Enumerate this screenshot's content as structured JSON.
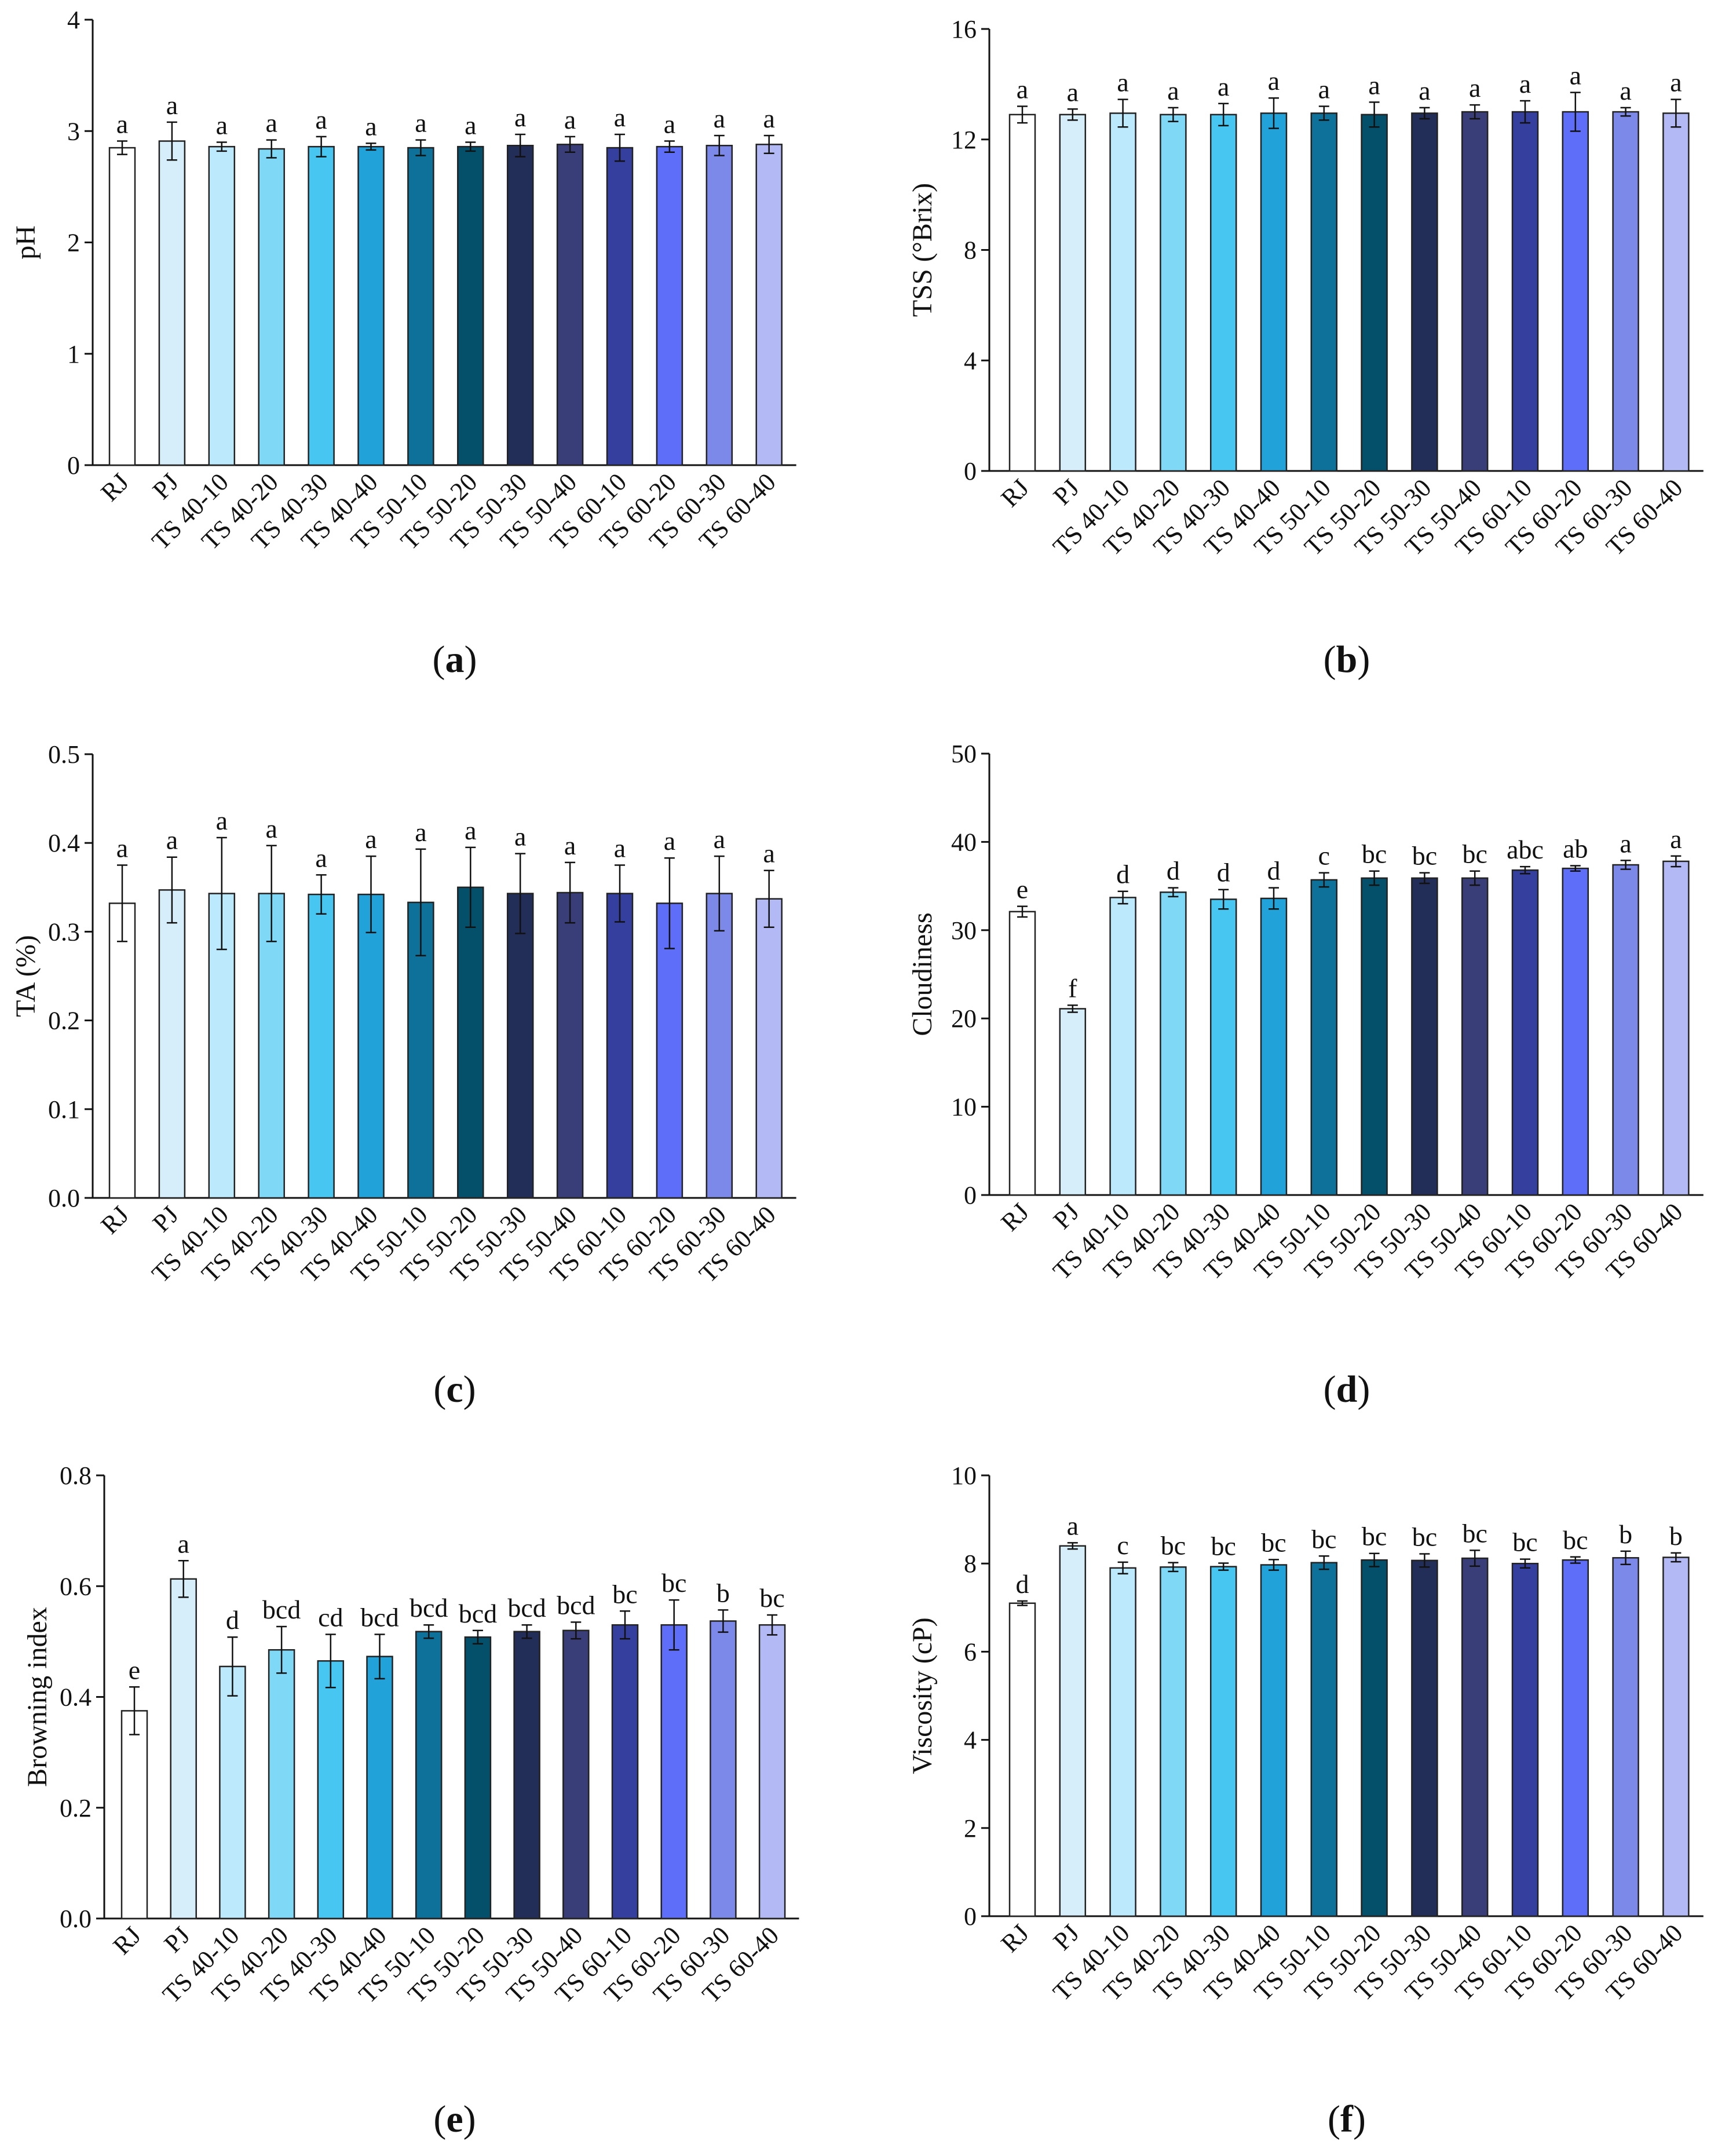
{
  "categories": [
    "RJ",
    "PJ",
    "TS 40-10",
    "TS 40-20",
    "TS 40-30",
    "TS 40-40",
    "TS 50-10",
    "TS 50-20",
    "TS 50-30",
    "TS 50-40",
    "TS 60-10",
    "TS 60-20",
    "TS 60-30",
    "TS 60-40"
  ],
  "bar_colors": [
    "#ffffff",
    "#d6eefa",
    "#bce9fb",
    "#7fd8f6",
    "#48c6f2",
    "#21a2d9",
    "#0e7199",
    "#04506b",
    "#232e58",
    "#393d78",
    "#353f9e",
    "#5f6ef9",
    "#7d89e8",
    "#b2b9f4"
  ],
  "chart_data": [
    {
      "panel": "a",
      "panel_label": "a",
      "type": "bar",
      "ylabel": "pH",
      "ylim": [
        0,
        4
      ],
      "yticks": [
        "0",
        "1",
        "2",
        "3",
        "4"
      ],
      "values": [
        2.85,
        2.91,
        2.86,
        2.84,
        2.86,
        2.86,
        2.85,
        2.86,
        2.87,
        2.88,
        2.85,
        2.86,
        2.87,
        2.88
      ],
      "errors": [
        0.06,
        0.17,
        0.04,
        0.08,
        0.09,
        0.03,
        0.07,
        0.04,
        0.1,
        0.07,
        0.12,
        0.05,
        0.09,
        0.08
      ],
      "letters": [
        "a",
        "a",
        "a",
        "a",
        "a",
        "a",
        "a",
        "a",
        "a",
        "a",
        "a",
        "a",
        "a",
        "a"
      ]
    },
    {
      "panel": "b",
      "panel_label": "b",
      "type": "bar",
      "ylabel": "TSS (°Brix)",
      "ylim": [
        0,
        16
      ],
      "yticks": [
        "0",
        "4",
        "8",
        "12",
        "16"
      ],
      "values": [
        12.9,
        12.9,
        12.95,
        12.9,
        12.9,
        12.95,
        12.95,
        12.9,
        12.95,
        13.0,
        13.0,
        13.0,
        13.0,
        12.95
      ],
      "errors": [
        0.3,
        0.2,
        0.5,
        0.25,
        0.4,
        0.55,
        0.25,
        0.45,
        0.2,
        0.25,
        0.4,
        0.7,
        0.15,
        0.5
      ],
      "letters": [
        "a",
        "a",
        "a",
        "a",
        "a",
        "a",
        "a",
        "a",
        "a",
        "a",
        "a",
        "a",
        "a",
        "a"
      ]
    },
    {
      "panel": "c",
      "panel_label": "c",
      "type": "bar",
      "ylabel": "TA (%)",
      "ylim": [
        0,
        0.5
      ],
      "yticks": [
        "0.0",
        "0.1",
        "0.2",
        "0.3",
        "0.4",
        "0.5"
      ],
      "values": [
        0.332,
        0.347,
        0.343,
        0.343,
        0.342,
        0.342,
        0.333,
        0.35,
        0.343,
        0.344,
        0.343,
        0.332,
        0.343,
        0.337
      ],
      "errors": [
        0.043,
        0.037,
        0.063,
        0.054,
        0.022,
        0.043,
        0.06,
        0.045,
        0.045,
        0.034,
        0.032,
        0.051,
        0.042,
        0.032
      ],
      "letters": [
        "a",
        "a",
        "a",
        "a",
        "a",
        "a",
        "a",
        "a",
        "a",
        "a",
        "a",
        "a",
        "a",
        "a"
      ]
    },
    {
      "panel": "d",
      "panel_label": "d",
      "type": "bar",
      "ylabel": "Cloudiness",
      "ylim": [
        0,
        50
      ],
      "yticks": [
        "0",
        "10",
        "20",
        "30",
        "40",
        "50"
      ],
      "values": [
        32.1,
        21.1,
        33.7,
        34.3,
        33.5,
        33.6,
        35.7,
        35.9,
        35.9,
        35.9,
        36.8,
        37.0,
        37.4,
        37.8
      ],
      "errors": [
        0.6,
        0.4,
        0.7,
        0.5,
        1.1,
        1.2,
        0.8,
        0.8,
        0.6,
        0.8,
        0.4,
        0.3,
        0.5,
        0.6
      ],
      "letters": [
        "e",
        "f",
        "d",
        "d",
        "d",
        "d",
        "c",
        "bc",
        "bc",
        "bc",
        "abc",
        "ab",
        "a",
        "a"
      ]
    },
    {
      "panel": "e",
      "panel_label": "e",
      "type": "bar",
      "ylabel": "Browning index",
      "ylim": [
        0,
        0.8
      ],
      "yticks": [
        "0.0",
        "0.2",
        "0.4",
        "0.6",
        "0.8"
      ],
      "values": [
        0.375,
        0.613,
        0.455,
        0.485,
        0.465,
        0.473,
        0.518,
        0.508,
        0.518,
        0.52,
        0.53,
        0.53,
        0.537,
        0.53
      ],
      "errors": [
        0.043,
        0.033,
        0.053,
        0.042,
        0.048,
        0.04,
        0.012,
        0.012,
        0.012,
        0.015,
        0.025,
        0.045,
        0.02,
        0.018
      ],
      "letters": [
        "e",
        "a",
        "d",
        "bcd",
        "cd",
        "bcd",
        "bcd",
        "bcd",
        "bcd",
        "bcd",
        "bc",
        "bc",
        "b",
        "bc"
      ]
    },
    {
      "panel": "f",
      "panel_label": "f",
      "type": "bar",
      "ylabel": "Viscosity (cP)",
      "ylim": [
        0,
        10
      ],
      "yticks": [
        "0",
        "2",
        "4",
        "6",
        "8",
        "10"
      ],
      "values": [
        7.1,
        8.4,
        7.9,
        7.92,
        7.93,
        7.97,
        8.02,
        8.08,
        8.07,
        8.12,
        8.0,
        8.08,
        8.13,
        8.14
      ],
      "errors": [
        0.05,
        0.07,
        0.13,
        0.1,
        0.08,
        0.12,
        0.15,
        0.15,
        0.15,
        0.18,
        0.1,
        0.07,
        0.15,
        0.1
      ],
      "letters": [
        "d",
        "a",
        "c",
        "bc",
        "bc",
        "bc",
        "bc",
        "bc",
        "bc",
        "bc",
        "bc",
        "bc",
        "b",
        "b"
      ]
    }
  ]
}
